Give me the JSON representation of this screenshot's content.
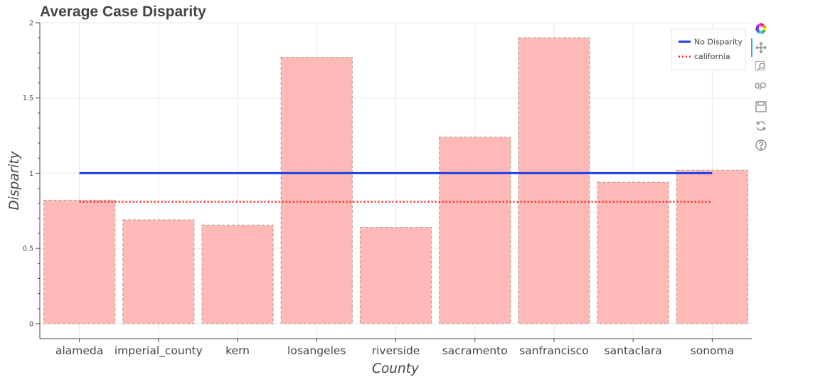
{
  "toolbar": {
    "tools": [
      "bokeh-logo-icon",
      "pan-icon",
      "box-zoom-icon",
      "wheel-zoom-icon",
      "save-icon",
      "reset-icon",
      "help-icon"
    ],
    "active_tool": "pan-icon"
  },
  "colors": {
    "bar_fill": "#ffbab8",
    "bar_stroke": "#b8a696",
    "no_disparity_line": "#1f3fe6",
    "california_line": "#ff1a1a",
    "grid": "#e8e8e8",
    "axis": "#444444"
  },
  "chart_data": {
    "type": "bar",
    "title": "Average Case Disparity",
    "xlabel": "County",
    "ylabel": "Disparity",
    "categories": [
      "alameda",
      "imperial_county",
      "kern",
      "losangeles",
      "riverside",
      "sacramento",
      "sanfrancisco",
      "santaclara",
      "sonoma"
    ],
    "values": [
      0.82,
      0.69,
      0.655,
      1.77,
      0.64,
      1.24,
      1.9,
      0.94,
      1.02
    ],
    "ylim": [
      -0.1,
      2.0
    ],
    "yticks": [
      0,
      0.5,
      1,
      1.5,
      2
    ],
    "ytick_labels": [
      "0",
      "0.5",
      "1",
      "1.5",
      "2"
    ],
    "grid": true,
    "legend_position": "top-right",
    "lines": [
      {
        "name": "No Disparity",
        "value": 1.0,
        "style": "solid"
      },
      {
        "name": "california",
        "value": 0.81,
        "style": "dotted"
      }
    ]
  }
}
